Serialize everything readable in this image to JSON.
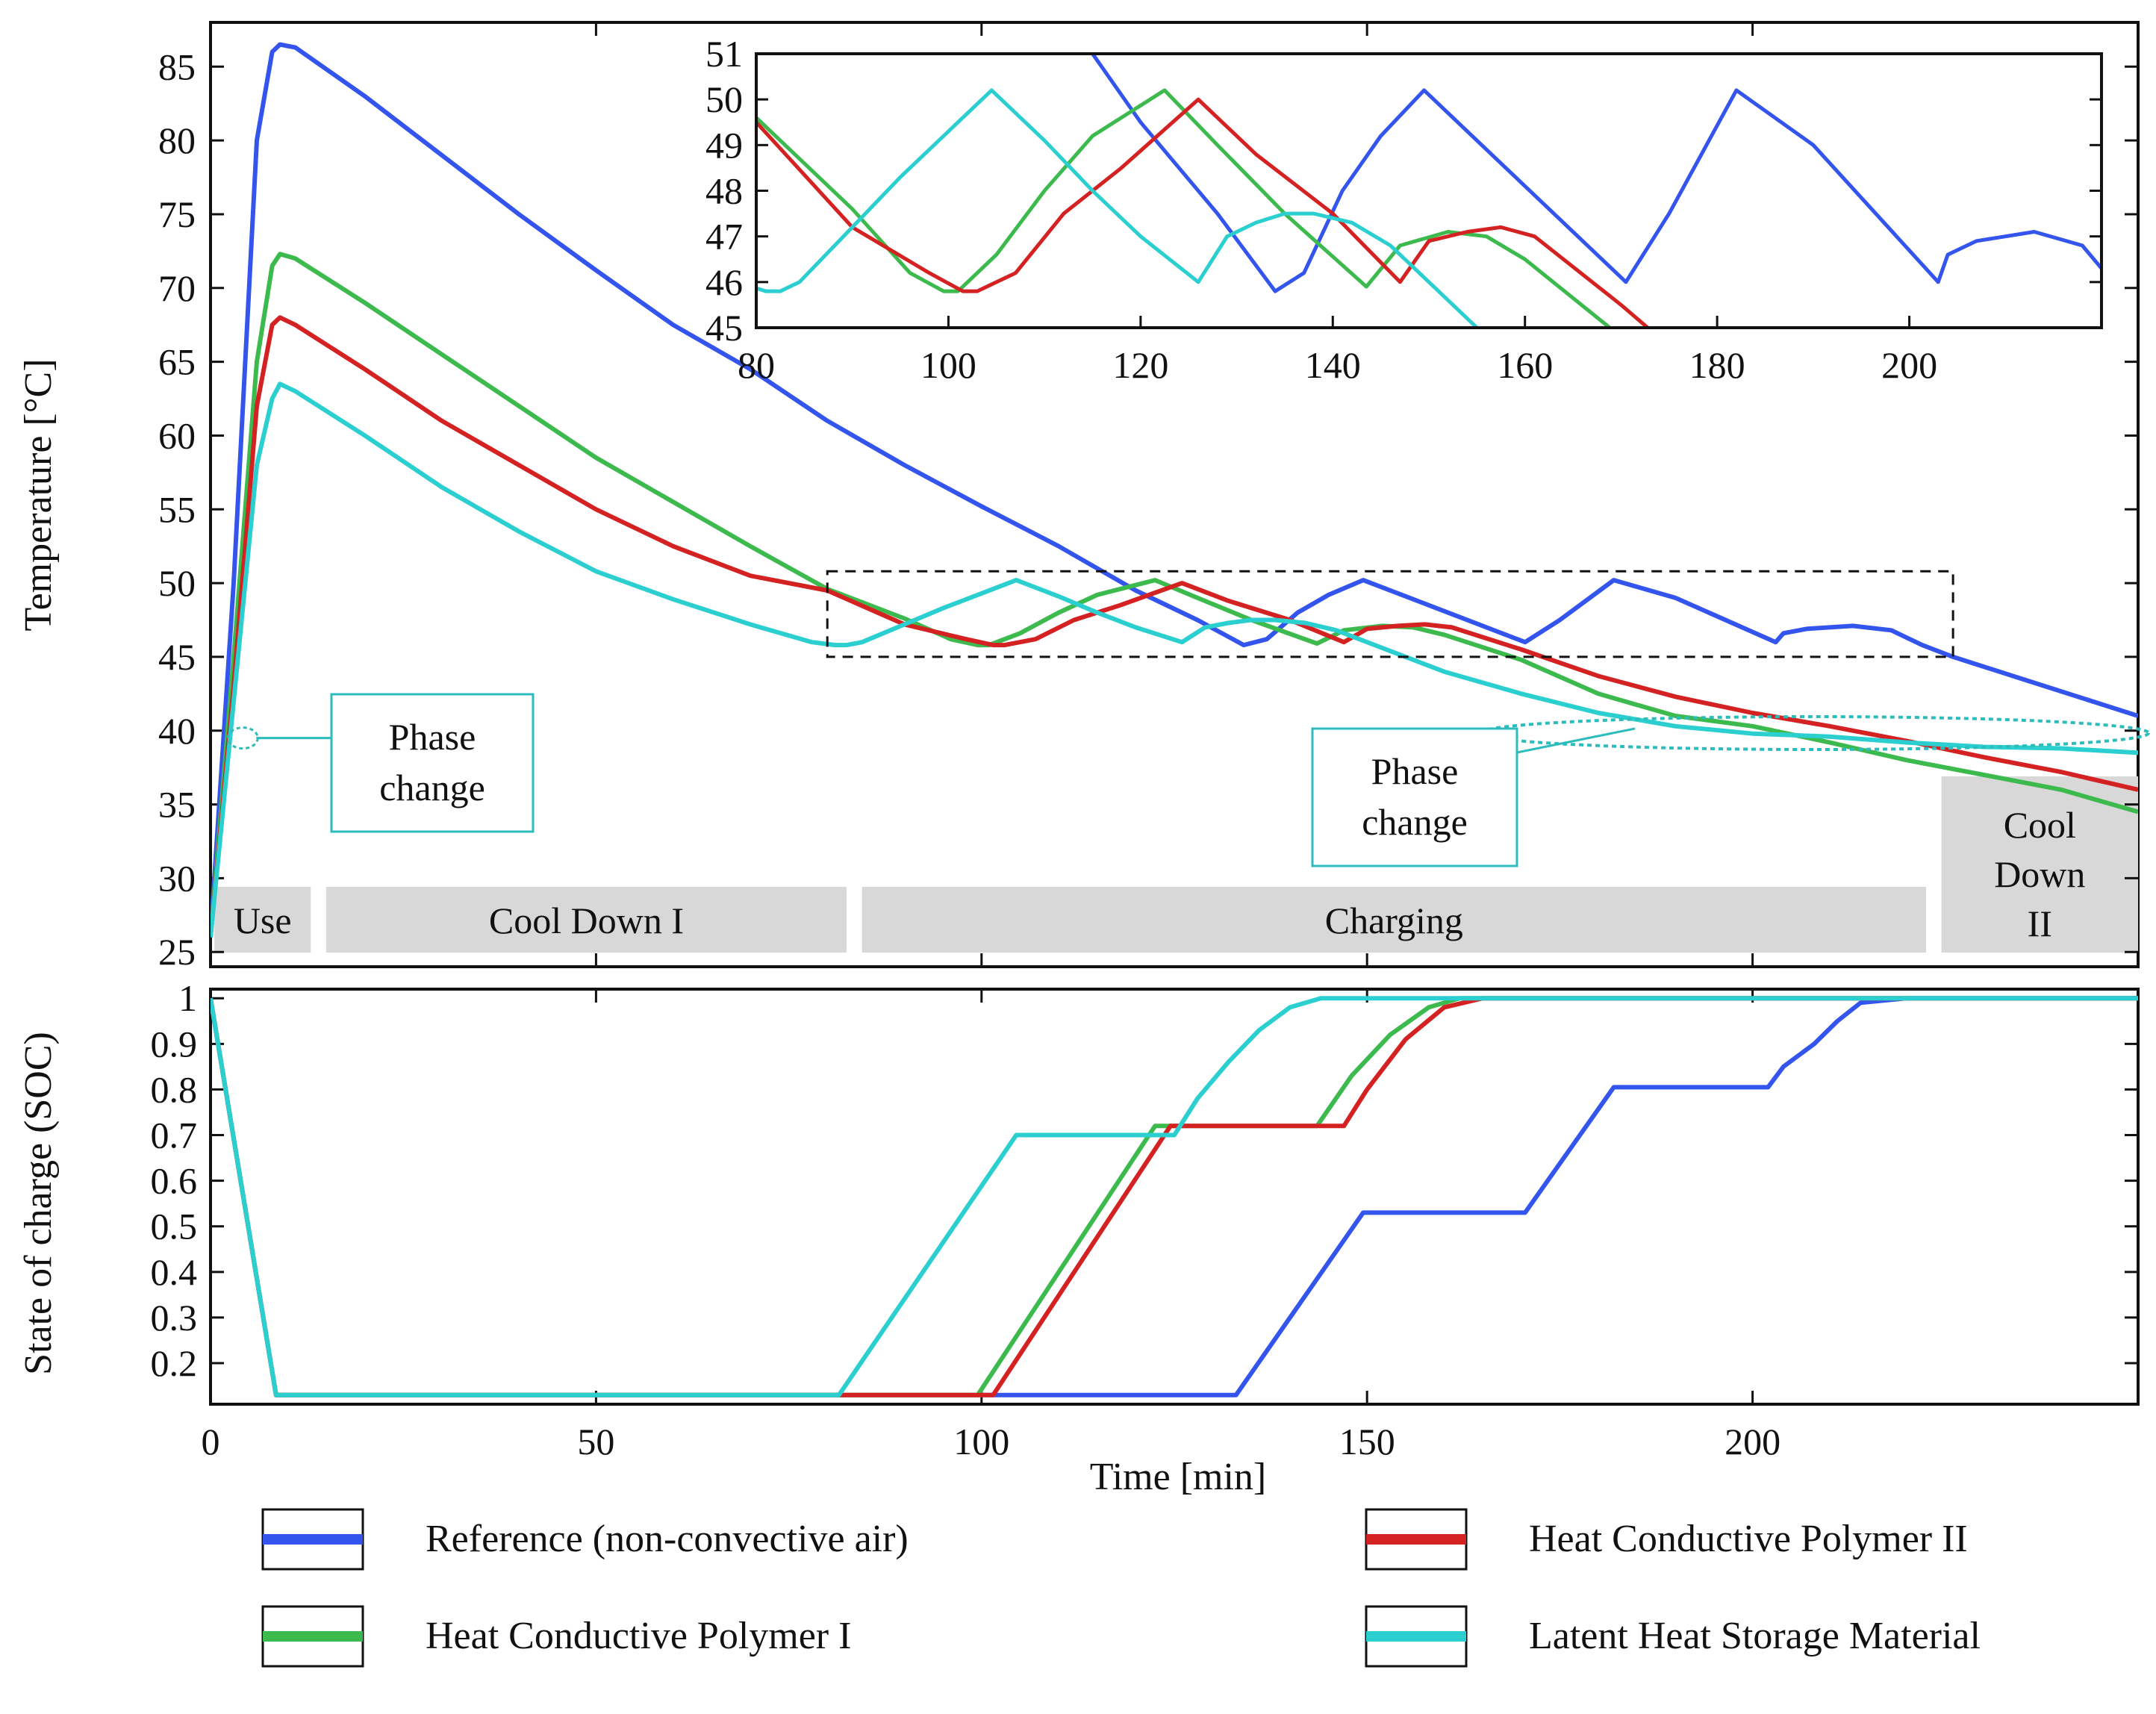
{
  "colors": {
    "reference": "#3355ee",
    "polymer1": "#3dba4e",
    "polymer2": "#d42222",
    "latent": "#2ccfd0",
    "phase_box": "#2cbcbc",
    "band": "#d8d8d8"
  },
  "chart_data": [
    {
      "type": "line",
      "name": "temperature",
      "ylabel": "Temperature [°C]",
      "xlim": [
        0,
        250
      ],
      "ylim": [
        24,
        88
      ],
      "yticks": [
        "25",
        "30",
        "35",
        "40",
        "45",
        "50",
        "55",
        "60",
        "65",
        "70",
        "75",
        "80",
        "85"
      ],
      "phases": [
        {
          "label": [
            "Use"
          ],
          "from": 0.5,
          "to": 13
        },
        {
          "label": [
            "Cool Down I"
          ],
          "from": 15,
          "to": 82.5
        },
        {
          "label": [
            "Charging"
          ],
          "from": 84.5,
          "to": 222.5
        },
        {
          "label": [
            "Cool",
            "Down",
            "II"
          ],
          "from": 224.5,
          "to": 250
        }
      ],
      "annotations": [
        {
          "lines": [
            "Phase",
            "change"
          ],
          "target": [
            4,
            39.5
          ]
        },
        {
          "lines": [
            "Phase",
            "change"
          ],
          "target": [
            185,
            40.8
          ]
        }
      ],
      "zoom_box": {
        "x": [
          80,
          226
        ],
        "y": [
          45,
          50.8
        ]
      },
      "series": [
        {
          "name": "Reference (non-convective air)",
          "key": "reference",
          "x": [
            0,
            3,
            6,
            8,
            9,
            11,
            20,
            30,
            40,
            50,
            60,
            70,
            80,
            90,
            100,
            110,
            120,
            128,
            134,
            137,
            141,
            145,
            149.5,
            158,
            170.5,
            175,
            182,
            190,
            203,
            204,
            207,
            213,
            218,
            222,
            226,
            235,
            250
          ],
          "y": [
            26,
            50,
            80,
            86,
            86.5,
            86.3,
            83,
            79,
            75,
            71.2,
            67.5,
            64.5,
            61,
            58,
            55.2,
            52.5,
            49.5,
            47.5,
            45.8,
            46.2,
            48,
            49.2,
            50.2,
            48.5,
            46,
            47.5,
            50.2,
            49,
            46,
            46.6,
            46.9,
            47.1,
            46.8,
            45.8,
            45,
            43.5,
            41
          ]
        },
        {
          "name": "Heat Conductive Polymer I",
          "key": "polymer1",
          "x": [
            0,
            3,
            6,
            8,
            9,
            11,
            20,
            30,
            40,
            50,
            60,
            70,
            80,
            90,
            96,
            99.5,
            101,
            105,
            110,
            115,
            122.5,
            128,
            135,
            143.5,
            147,
            152,
            156,
            160,
            170,
            180,
            190,
            200,
            210,
            220,
            230,
            240,
            250
          ],
          "y": [
            26,
            45,
            65,
            71.5,
            72.3,
            72,
            69,
            65.5,
            62,
            58.5,
            55.5,
            52.5,
            49.6,
            47.6,
            46.2,
            45.8,
            45.8,
            46.6,
            48,
            49.2,
            50.2,
            49,
            47.5,
            45.9,
            46.8,
            47.1,
            47,
            46.5,
            44.8,
            42.5,
            41,
            40.3,
            39.2,
            38,
            37,
            36,
            34.5
          ]
        },
        {
          "name": "Heat Conductive Polymer II",
          "key": "polymer2",
          "x": [
            0,
            3,
            6,
            8,
            9,
            11,
            20,
            30,
            40,
            50,
            60,
            70,
            80,
            90,
            98,
            101.5,
            103,
            107,
            112,
            118,
            126,
            132,
            140,
            147,
            150,
            154,
            157.5,
            161,
            170,
            180,
            190,
            200,
            210,
            220,
            230,
            240,
            250
          ],
          "y": [
            26,
            43,
            62,
            67.5,
            68,
            67.5,
            64.5,
            61,
            58,
            55,
            52.5,
            50.5,
            49.5,
            47.2,
            46.2,
            45.8,
            45.8,
            46.2,
            47.5,
            48.5,
            50,
            48.8,
            47.5,
            46,
            46.9,
            47.1,
            47.2,
            47,
            45.5,
            43.7,
            42.3,
            41.2,
            40.3,
            39.3,
            38.2,
            37.2,
            36
          ]
        },
        {
          "name": "Latent Heat Storage Material",
          "key": "latent",
          "x": [
            0,
            3,
            6,
            8,
            9,
            11,
            20,
            30,
            40,
            50,
            60,
            70,
            78,
            81,
            82.5,
            84.5,
            90,
            95,
            100,
            104.5,
            110,
            115,
            120,
            126,
            129,
            132,
            135,
            138,
            142,
            146,
            150,
            155,
            160,
            170,
            180,
            190,
            200,
            210,
            220,
            230,
            240,
            250
          ],
          "y": [
            26,
            42,
            58,
            62.5,
            63.5,
            63,
            60,
            56.5,
            53.5,
            50.8,
            48.9,
            47.2,
            46,
            45.8,
            45.8,
            46,
            47.2,
            48.3,
            49.3,
            50.2,
            49.1,
            48,
            47,
            46,
            47,
            47.3,
            47.5,
            47.5,
            47.3,
            46.8,
            46,
            45,
            44,
            42.5,
            41.2,
            40.3,
            39.8,
            39.6,
            39.2,
            38.9,
            38.8,
            38.5
          ]
        }
      ]
    },
    {
      "type": "line",
      "name": "inset-zoom",
      "xlim": [
        80,
        220
      ],
      "ylim": [
        45,
        51
      ],
      "xticks": [
        "80",
        "100",
        "120",
        "140",
        "160",
        "180",
        "200"
      ],
      "yticks": [
        "45",
        "46",
        "47",
        "48",
        "49",
        "50",
        "51"
      ]
    },
    {
      "type": "line",
      "name": "state-of-charge",
      "ylabel": "State of charge (SOC)",
      "xlabel": "Time [min]",
      "xlim": [
        0,
        250
      ],
      "ylim": [
        0.11,
        1.02
      ],
      "xticks": [
        "0",
        "50",
        "100",
        "150",
        "200"
      ],
      "yticks": [
        "0.2",
        "0.3",
        "0.4",
        "0.5",
        "0.6",
        "0.7",
        "0.8",
        "0.9",
        "1"
      ],
      "series": [
        {
          "name": "Reference (non-convective air)",
          "key": "reference",
          "x": [
            0,
            8.5,
            133,
            149.5,
            170.5,
            182,
            202,
            204,
            208,
            211,
            214,
            220,
            250
          ],
          "y": [
            1,
            0.13,
            0.13,
            0.53,
            0.53,
            0.805,
            0.805,
            0.85,
            0.9,
            0.95,
            0.99,
            1,
            1
          ]
        },
        {
          "name": "Heat Conductive Polymer I",
          "key": "polymer1",
          "x": [
            0,
            8.5,
            99.5,
            122.5,
            143.5,
            148,
            153,
            158,
            162,
            250
          ],
          "y": [
            1,
            0.13,
            0.13,
            0.72,
            0.72,
            0.83,
            0.92,
            0.98,
            1,
            1
          ]
        },
        {
          "name": "Heat Conductive Polymer II",
          "key": "polymer2",
          "x": [
            0,
            8.5,
            101.5,
            124.5,
            147,
            150,
            155,
            160,
            165,
            250
          ],
          "y": [
            1,
            0.13,
            0.13,
            0.72,
            0.72,
            0.8,
            0.91,
            0.98,
            1,
            1
          ]
        },
        {
          "name": "Latent Heat Storage Material",
          "key": "latent",
          "x": [
            0,
            8.5,
            81.5,
            104.5,
            125,
            128,
            132,
            136,
            140,
            144,
            250
          ],
          "y": [
            1,
            0.13,
            0.13,
            0.7,
            0.7,
            0.78,
            0.86,
            0.93,
            0.98,
            1,
            1
          ]
        }
      ]
    }
  ],
  "legend": [
    {
      "label": "Reference (non-convective air)",
      "key": "reference"
    },
    {
      "label": "Heat Conductive Polymer II",
      "key": "polymer2"
    },
    {
      "label": "Heat Conductive Polymer I",
      "key": "polymer1"
    },
    {
      "label": "Latent Heat Storage Material",
      "key": "latent"
    }
  ]
}
